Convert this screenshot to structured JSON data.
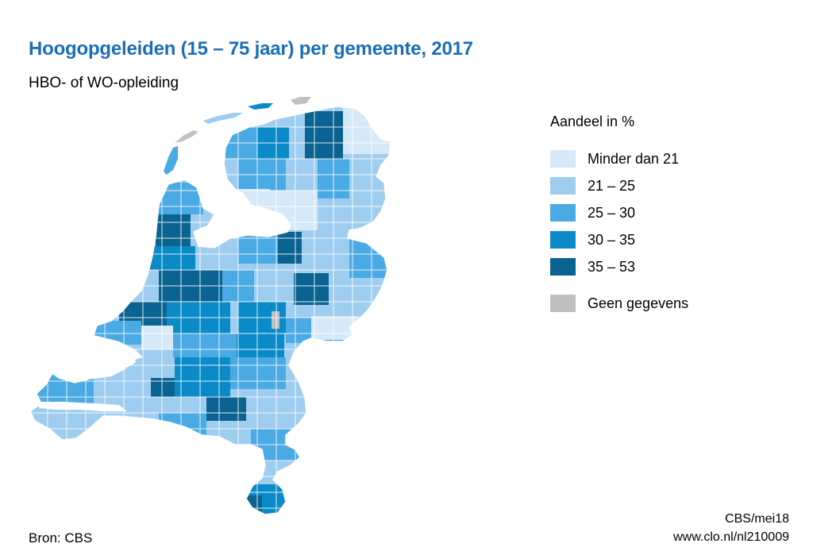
{
  "title": "Hoogopgeleiden (15 – 75 jaar) per gemeente, 2017",
  "subtitle": "HBO- of WO-opleiding",
  "legend": {
    "title": "Aandeel in %",
    "items": [
      {
        "label": "Minder dan 21",
        "color": "#d6e9f8"
      },
      {
        "label": "21 – 25",
        "color": "#9ecdf0"
      },
      {
        "label": "25 – 30",
        "color": "#4aaae4"
      },
      {
        "label": "30 – 35",
        "color": "#0b8ac8"
      },
      {
        "label": "35 – 53",
        "color": "#0a6391"
      },
      {
        "label": "Geen gegevens",
        "color": "#c0c0c0"
      }
    ]
  },
  "source": "Bron: CBS",
  "credit": {
    "line1": "CBS/mei18",
    "line2": "www.clo.nl/nl210009"
  },
  "colors": {
    "title": "#1a6eb5",
    "border": "#ffffff"
  }
}
